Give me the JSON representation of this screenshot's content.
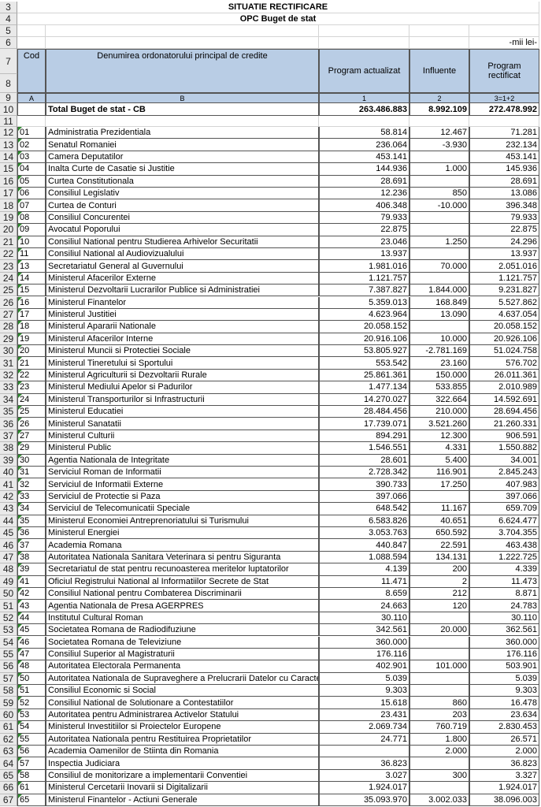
{
  "header": {
    "title": "SITUATIE RECTIFICARE",
    "subtitle": "OPC Buget de stat",
    "unit": "-mii lei-"
  },
  "row_numbers": [
    3,
    4,
    5,
    6,
    7,
    8,
    9,
    10,
    11,
    12,
    13,
    14,
    15,
    16,
    17,
    18,
    19,
    20,
    21,
    22,
    23,
    24,
    25,
    26,
    27,
    28,
    29,
    30,
    31,
    32,
    33,
    34,
    35,
    36,
    37,
    38,
    39,
    40,
    41,
    42,
    43,
    44,
    45,
    46,
    47,
    48,
    49,
    50,
    51,
    52,
    53,
    54,
    55,
    56,
    57,
    58,
    59,
    60,
    61,
    62,
    63,
    64,
    65,
    66,
    67
  ],
  "table": {
    "columns": [
      "Cod",
      "Denumirea ordonatorului principal de credite",
      "Program actualizat",
      "Influente",
      "Program rectificat"
    ],
    "column_letters": [
      "A",
      "B",
      "1",
      "2",
      "3=1+2"
    ],
    "total": [
      "Total Buget de stat - CB",
      "263.486.883",
      "8.992.109",
      "272.478.992"
    ],
    "rows": [
      [
        "01",
        "Administratia Prezidentiala",
        "58.814",
        "12.467",
        "71.281"
      ],
      [
        "02",
        "Senatul Romaniei",
        "236.064",
        "-3.930",
        "232.134"
      ],
      [
        "03",
        "Camera Deputatilor",
        "453.141",
        null,
        "453.141"
      ],
      [
        "04",
        "Inalta Curte de Casatie si Justitie",
        "144.936",
        "1.000",
        "145.936"
      ],
      [
        "05",
        "Curtea Constitutionala",
        "28.691",
        null,
        "28.691"
      ],
      [
        "06",
        "Consiliul Legislativ",
        "12.236",
        "850",
        "13.086"
      ],
      [
        "07",
        "Curtea de Conturi",
        "406.348",
        "-10.000",
        "396.348"
      ],
      [
        "08",
        "Consiliul Concurentei",
        "79.933",
        null,
        "79.933"
      ],
      [
        "09",
        "Avocatul Poporului",
        "22.875",
        null,
        "22.875"
      ],
      [
        "10",
        "Consiliul National pentru Studierea Arhivelor Securitatii",
        "23.046",
        "1.250",
        "24.296"
      ],
      [
        "11",
        "Consiliul National al Audiovizualului",
        "13.937",
        null,
        "13.937"
      ],
      [
        "13",
        "Secretariatul General al Guvernului",
        "1.981.016",
        "70.000",
        "2.051.016"
      ],
      [
        "14",
        "Ministerul Afacerilor Externe",
        "1.121.757",
        null,
        "1.121.757"
      ],
      [
        "15",
        "Ministerul Dezvoltarii Lucrarilor Publice si Administratiei",
        "7.387.827",
        "1.844.000",
        "9.231.827"
      ],
      [
        "16",
        "Ministerul Finantelor",
        "5.359.013",
        "168.849",
        "5.527.862"
      ],
      [
        "17",
        "Ministerul Justitiei",
        "4.623.964",
        "13.090",
        "4.637.054"
      ],
      [
        "18",
        "Ministerul Apararii Nationale",
        "20.058.152",
        null,
        "20.058.152"
      ],
      [
        "19",
        "Ministerul Afacerilor Interne",
        "20.916.106",
        "10.000",
        "20.926.106"
      ],
      [
        "20",
        "Ministerul Muncii si Protectiei Sociale",
        "53.805.927",
        "-2.781.169",
        "51.024.758"
      ],
      [
        "21",
        "Ministerul Tineretului si Sportului",
        "553.542",
        "23.160",
        "576.702"
      ],
      [
        "22",
        "Ministerul Agriculturii si Dezvoltarii Rurale",
        "25.861.361",
        "150.000",
        "26.011.361"
      ],
      [
        "23",
        "Ministerul Mediului Apelor si Padurilor",
        "1.477.134",
        "533.855",
        "2.010.989"
      ],
      [
        "24",
        "Ministerul Transporturilor si Infrastructurii",
        "14.270.027",
        "322.664",
        "14.592.691"
      ],
      [
        "25",
        "Ministerul Educatiei",
        "28.484.456",
        "210.000",
        "28.694.456"
      ],
      [
        "26",
        "Ministerul Sanatatii",
        "17.739.071",
        "3.521.260",
        "21.260.331"
      ],
      [
        "27",
        "Ministerul Culturii",
        "894.291",
        "12.300",
        "906.591"
      ],
      [
        "29",
        "Ministerul Public",
        "1.546.551",
        "4.331",
        "1.550.882"
      ],
      [
        "30",
        "Agentia Nationala de Integritate",
        "28.601",
        "5.400",
        "34.001"
      ],
      [
        "31",
        "Serviciul Roman de Informatii",
        "2.728.342",
        "116.901",
        "2.845.243"
      ],
      [
        "32",
        "Serviciul de Informatii Externe",
        "390.733",
        "17.250",
        "407.983"
      ],
      [
        "33",
        "Serviciul de Protectie si Paza",
        "397.066",
        null,
        "397.066"
      ],
      [
        "34",
        "Serviciul de Telecomunicatii Speciale",
        "648.542",
        "11.167",
        "659.709"
      ],
      [
        "35",
        "Ministerul Economiei Antreprenoriatului si Turismului",
        "6.583.826",
        "40.651",
        "6.624.477"
      ],
      [
        "36",
        "Ministerul Energiei",
        "3.053.763",
        "650.592",
        "3.704.355"
      ],
      [
        "37",
        "Academia Romana",
        "440.847",
        "22.591",
        "463.438"
      ],
      [
        "38",
        "Autoritatea Nationala Sanitara Veterinara si pentru Siguranta",
        "1.088.594",
        "134.131",
        "1.222.725"
      ],
      [
        "39",
        "Secretariatul de stat pentru recunoasterea meritelor luptatorilor",
        "4.139",
        "200",
        "4.339"
      ],
      [
        "41",
        "Oficiul Registrului National al Informatiilor Secrete de Stat",
        "11.471",
        "2",
        "11.473"
      ],
      [
        "42",
        "Consiliul National pentru Combaterea Discriminarii",
        "8.659",
        "212",
        "8.871"
      ],
      [
        "43",
        "Agentia Nationala de Presa AGERPRES",
        "24.663",
        "120",
        "24.783"
      ],
      [
        "44",
        "Institutul Cultural Roman",
        "30.110",
        null,
        "30.110"
      ],
      [
        "45",
        "Societatea Romana de Radiodifuziune",
        "342.561",
        "20.000",
        "362.561"
      ],
      [
        "46",
        "Societatea Romana de Televiziune",
        "360.000",
        null,
        "360.000"
      ],
      [
        "47",
        "Consiliul Superior al Magistraturii",
        "176.116",
        null,
        "176.116"
      ],
      [
        "48",
        "Autoritatea Electorala Permanenta",
        "402.901",
        "101.000",
        "503.901"
      ],
      [
        "50",
        "Autoritatea Nationala de Supraveghere a Prelucrarii Datelor cu Caracter",
        "5.039",
        null,
        "5.039"
      ],
      [
        "51",
        "Consiliul Economic si Social",
        "9.303",
        null,
        "9.303"
      ],
      [
        "52",
        "Consiliul National de Solutionare a Contestatiilor",
        "15.618",
        "860",
        "16.478"
      ],
      [
        "53",
        "Autoritatea pentru Administrarea Activelor Statului",
        "23.431",
        "203",
        "23.634"
      ],
      [
        "54",
        "Ministerul Investitiilor si Proiectelor Europene",
        "2.069.734",
        "760.719",
        "2.830.453"
      ],
      [
        "55",
        "Autoritatea Nationala pentru Restituirea Proprietatilor",
        "24.771",
        "1.800",
        "26.571"
      ],
      [
        "56",
        "Academia Oamenilor de Stiinta din Romania",
        null,
        "2.000",
        "2.000"
      ],
      [
        "57",
        "Inspectia Judiciara",
        "36.823",
        null,
        "36.823"
      ],
      [
        "58",
        "Consiliul de monitorizare a implementarii Conventiei",
        "3.027",
        "300",
        "3.327"
      ],
      [
        "61",
        "Ministerul Cercetarii Inovarii si Digitalizarii",
        "1.924.017",
        null,
        "1.924.017"
      ],
      [
        "65",
        "Ministerul Finantelor - Actiuni Generale",
        "35.093.970",
        "3.002.033",
        "38.096.003"
      ]
    ]
  }
}
